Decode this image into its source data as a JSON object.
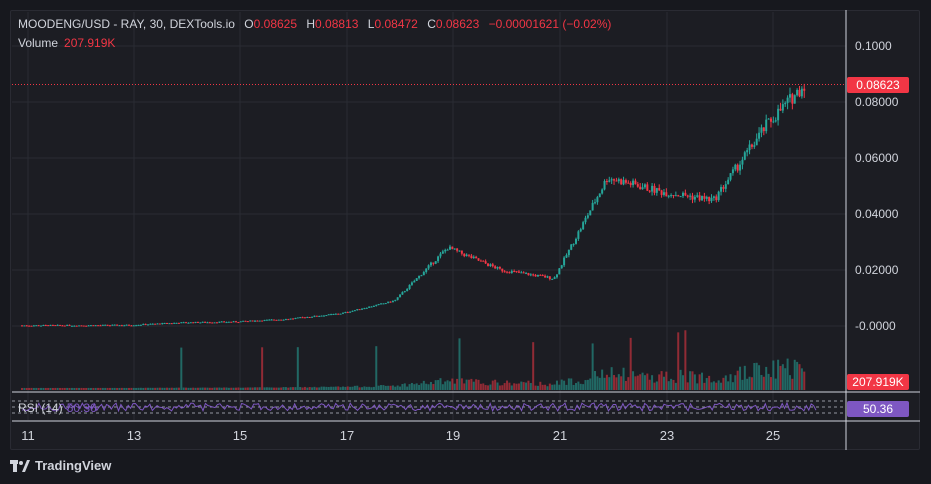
{
  "legend": {
    "symbol": "MOODENG/USD - RAY, 30, DEXTools.io",
    "open_label": "O",
    "open": "0.08625",
    "high_label": "H",
    "high": "0.08813",
    "low_label": "L",
    "low": "0.08472",
    "close_label": "C",
    "close": "0.08623",
    "change": "−0.00001621 (−0.02%)",
    "volume_label": "Volume",
    "volume": "207.919K"
  },
  "price_axis": {
    "ticks": [
      "0.1000",
      "0.08000",
      "0.06000",
      "0.04000",
      "0.02000",
      "-0.0000"
    ],
    "last_price": "0.08623",
    "volume_badge": "207.919K"
  },
  "rsi": {
    "label": "RSI (14)",
    "value": "50.36",
    "badge": "50.36"
  },
  "time_axis": {
    "labels": [
      "11",
      "13",
      "15",
      "17",
      "19",
      "21",
      "23",
      "25"
    ]
  },
  "brand": {
    "name": "TradingView"
  },
  "colors": {
    "up": "#26a69a",
    "down": "#f23645",
    "rsi": "#7e57c2",
    "background": "#1c1d23"
  },
  "chart_data": {
    "type": "line",
    "title": "MOODENG/USD - RAY, 30, DEXTools.io",
    "xlabel": "",
    "ylabel": "",
    "ylim": [
      0,
      0.1
    ],
    "x": [
      "11",
      "12",
      "13",
      "14",
      "15",
      "16",
      "17",
      "18",
      "19",
      "20",
      "21",
      "22",
      "23",
      "24",
      "25",
      "25.7"
    ],
    "series": [
      {
        "values": [
          0.0002,
          0.0002,
          0.0003,
          0.0012,
          0.0015,
          0.0025,
          0.0045,
          0.009,
          0.028,
          0.02,
          0.017,
          0.053,
          0.048,
          0.045,
          0.072,
          0.0862
        ]
      }
    ]
  }
}
